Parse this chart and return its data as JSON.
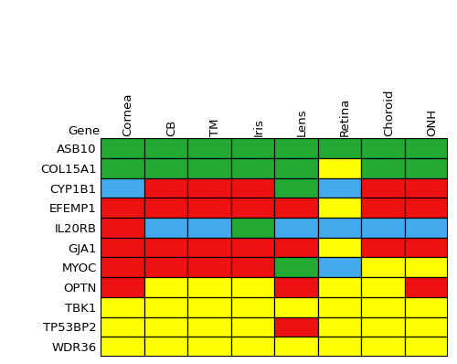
{
  "genes": [
    "ASB10",
    "COL15A1",
    "CYP1B1",
    "EFEMP1",
    "IL20RB",
    "GJA1",
    "MYOC",
    "OPTN",
    "TBK1",
    "TP53BP2",
    "WDR36"
  ],
  "tissues": [
    "Cornea",
    "CB",
    "TM",
    "Iris",
    "Lens",
    "Retina",
    "Choroid",
    "ONH"
  ],
  "colors": {
    "red": "#EE1111",
    "green": "#22AA33",
    "blue": "#44AAEE",
    "yellow": "#FFFF00"
  },
  "grid": [
    [
      "green",
      "green",
      "green",
      "green",
      "green",
      "green",
      "green",
      "green"
    ],
    [
      "green",
      "green",
      "green",
      "green",
      "green",
      "yellow",
      "green",
      "green"
    ],
    [
      "blue",
      "red",
      "red",
      "red",
      "green",
      "blue",
      "red",
      "red"
    ],
    [
      "red",
      "red",
      "red",
      "red",
      "red",
      "yellow",
      "red",
      "red"
    ],
    [
      "red",
      "blue",
      "blue",
      "green",
      "blue",
      "blue",
      "blue",
      "blue"
    ],
    [
      "red",
      "red",
      "red",
      "red",
      "red",
      "yellow",
      "red",
      "red"
    ],
    [
      "red",
      "red",
      "red",
      "red",
      "green",
      "blue",
      "yellow",
      "yellow"
    ],
    [
      "red",
      "yellow",
      "yellow",
      "yellow",
      "red",
      "yellow",
      "yellow",
      "red"
    ],
    [
      "yellow",
      "yellow",
      "yellow",
      "yellow",
      "yellow",
      "yellow",
      "yellow",
      "yellow"
    ],
    [
      "yellow",
      "yellow",
      "yellow",
      "yellow",
      "red",
      "yellow",
      "yellow",
      "yellow"
    ],
    [
      "yellow",
      "yellow",
      "yellow",
      "yellow",
      "yellow",
      "yellow",
      "yellow",
      "yellow"
    ]
  ],
  "cell_linewidth": 0.8,
  "cell_linecolor": "#000000",
  "gene_label_fontsize": 9.5,
  "header_fontsize": 9.5,
  "figure_bg": "#FFFFFF",
  "fig_width": 5.0,
  "fig_height": 3.98,
  "dpi": 100
}
